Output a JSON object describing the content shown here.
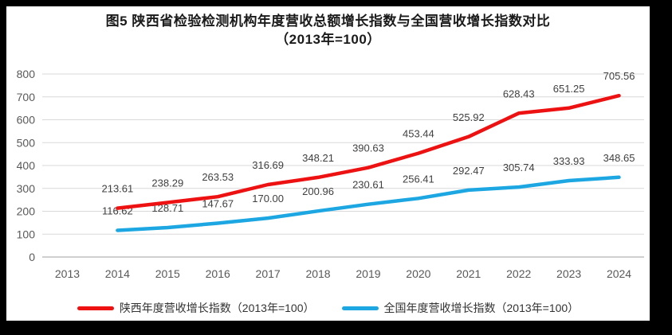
{
  "title": {
    "line1": "图5  陕西省检验检测机构年度营收总额增长指数与全国营收增长指数对比",
    "line2": "（2013年=100）"
  },
  "chart_data": {
    "type": "line",
    "categories": [
      "2013",
      "2014",
      "2015",
      "2016",
      "2017",
      "2018",
      "2019",
      "2020",
      "2021",
      "2022",
      "2023",
      "2024"
    ],
    "series": [
      {
        "name": "陕西年度营收增长指数（2013年=100）",
        "color": "#ee1111",
        "start_category": "2014",
        "values": [
          213.61,
          238.29,
          263.53,
          316.69,
          348.21,
          390.63,
          453.44,
          525.92,
          628.43,
          651.25,
          705.56
        ],
        "labels": [
          "213.61",
          "238.29",
          "263.53",
          "316.69",
          "348.21",
          "390.63",
          "453.44",
          "525.92",
          "628.43",
          "651.25",
          "705.56"
        ]
      },
      {
        "name": "全国年度营收增长指数（2013年=100）",
        "color": "#1ca7e2",
        "start_category": "2014",
        "values": [
          116.62,
          128.71,
          147.67,
          170.0,
          200.96,
          230.61,
          256.41,
          292.47,
          305.74,
          333.93,
          348.65
        ],
        "labels": [
          "116.62",
          "128.71",
          "147.67",
          "170.00",
          "200.96",
          "230.61",
          "256.41",
          "292.47",
          "305.74",
          "333.93",
          "348.65"
        ]
      }
    ],
    "ylim": [
      0,
      800
    ],
    "yticks": [
      0,
      100,
      200,
      300,
      400,
      500,
      600,
      700,
      800
    ],
    "grid": "horizontal",
    "legend_position": "bottom"
  },
  "colors": {
    "frame": "#000000",
    "canvas": "#ffffff",
    "gridline": "#d9d9d9",
    "axis_line": "#bfbfbf",
    "tick_text": "#595959",
    "data_label": "#404040",
    "title_text": "#1a1a1a",
    "legend_text": "#333333"
  }
}
